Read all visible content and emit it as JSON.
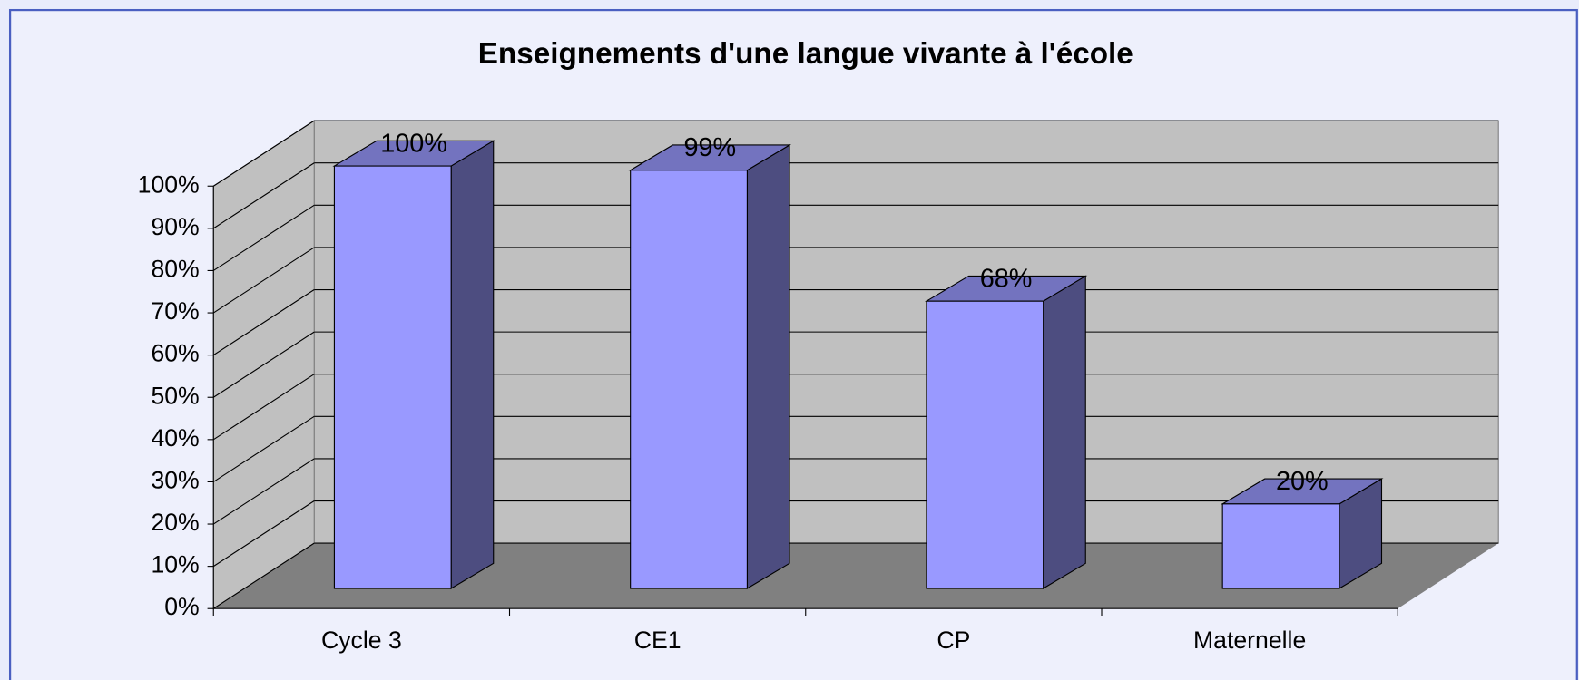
{
  "chart_data": {
    "type": "bar3d",
    "title": "Enseignements d'une langue vivante à l'école",
    "categories": [
      "Cycle 3",
      "CE1",
      "CP",
      "Maternelle"
    ],
    "values": [
      100,
      99,
      68,
      20
    ],
    "value_labels": [
      "100%",
      "99%",
      "68%",
      "20%"
    ],
    "color": "#9999ff",
    "ylim": [
      0,
      100
    ],
    "yticks": [
      {
        "value": 0,
        "label": "0%"
      },
      {
        "value": 10,
        "label": "10%"
      },
      {
        "value": 20,
        "label": "20%"
      },
      {
        "value": 30,
        "label": "30%"
      },
      {
        "value": 40,
        "label": "40%"
      },
      {
        "value": 50,
        "label": "50%"
      },
      {
        "value": 60,
        "label": "60%"
      },
      {
        "value": 70,
        "label": "70%"
      },
      {
        "value": 80,
        "label": "80%"
      },
      {
        "value": 90,
        "label": "90%"
      },
      {
        "value": 100,
        "label": "100%"
      }
    ],
    "grid": true
  }
}
